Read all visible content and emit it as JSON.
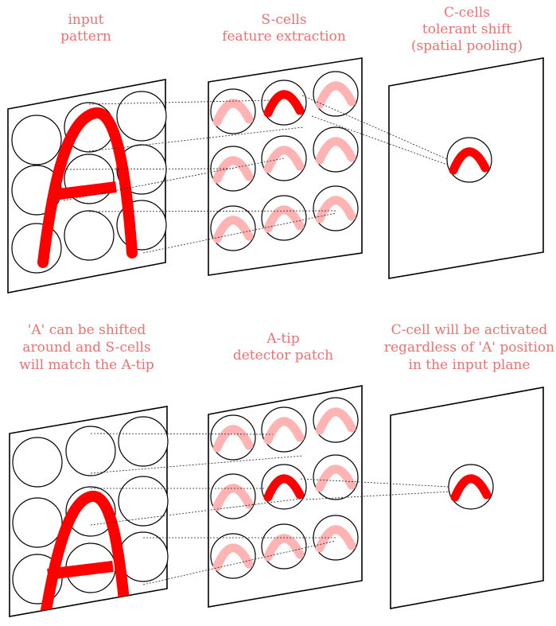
{
  "top": {
    "labels": {
      "input": [
        "input",
        "pattern"
      ],
      "s_cells": [
        "S-cells",
        "feature extraction"
      ],
      "c_cells": [
        "C-cells",
        "tolerant shift",
        "(spatial pooling)"
      ]
    }
  },
  "bottom": {
    "labels": {
      "input": [
        "'A' can be shifted",
        "around and S-cells",
        "will match the A-tip"
      ],
      "s_cells": [
        "A-tip",
        "detector patch"
      ],
      "c_cells": [
        "C-cell will be activated",
        "regardless of 'A' position",
        "in the input plane"
      ]
    }
  },
  "colors": {
    "label": "#ee7070",
    "active": "#ff0000",
    "inactive": "#ffb3b3",
    "outline": "#000000"
  }
}
